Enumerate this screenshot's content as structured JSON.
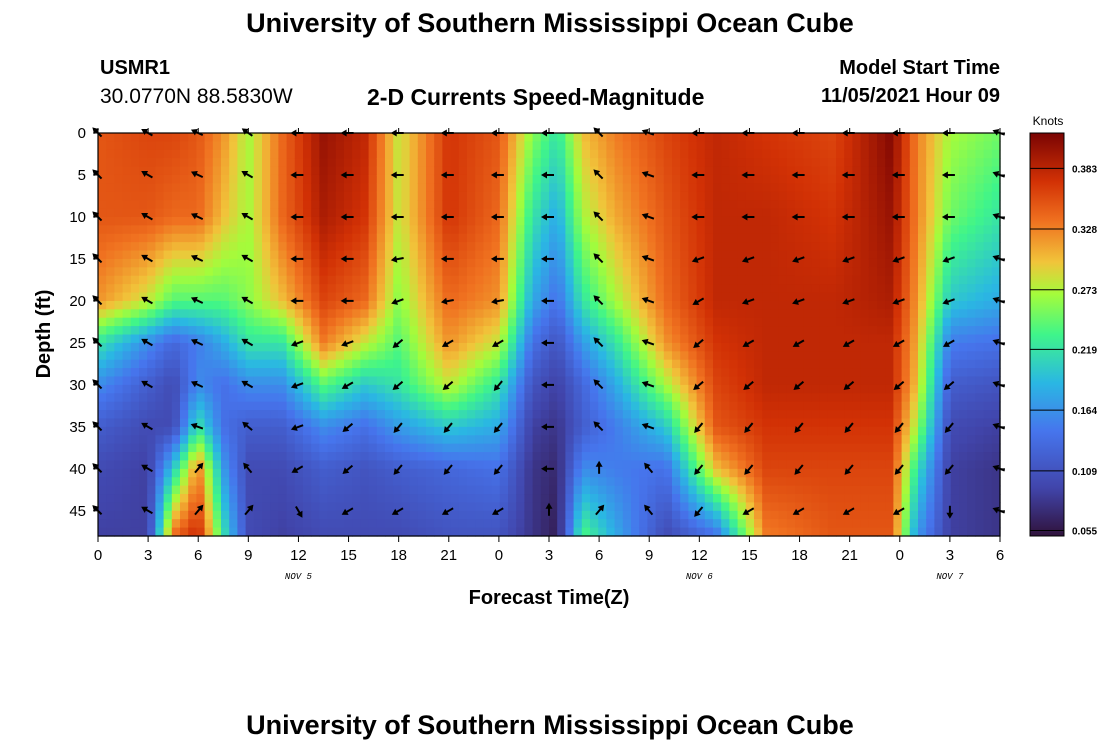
{
  "header": {
    "title": "University of Southern Mississippi Ocean Cube",
    "station_name": "USMR1",
    "station_coords": "30.0770N  88.5830W",
    "subtitle": "2-D Currents Speed-Magnitude",
    "start_label": "Model Start Time",
    "start_value": "11/05/2021 Hour 09"
  },
  "footer": {
    "title": "University of Southern Mississippi Ocean Cube"
  },
  "chart_data": {
    "type": "heatmap",
    "title": "2-D Currents Speed-Magnitude",
    "xlabel": "Forecast Time(Z)",
    "ylabel": "Depth (ft)",
    "x_hours_from_start": [
      0,
      3,
      6,
      9,
      12,
      15,
      18,
      21,
      24,
      27,
      30,
      33,
      36,
      39,
      42,
      45,
      48,
      51,
      54
    ],
    "x_tick_labels": [
      "0",
      "3",
      "6",
      "9",
      "12",
      "15",
      "18",
      "21",
      "0",
      "3",
      "6",
      "9",
      "12",
      "15",
      "18",
      "21",
      "0",
      "3",
      "6"
    ],
    "date_labels": [
      {
        "label": "NOV 5",
        "tick_index": 4
      },
      {
        "label": "NOV 6",
        "tick_index": 12
      },
      {
        "label": "NOV 7",
        "tick_index": 17
      }
    ],
    "y_depth_ft": [
      0,
      5,
      10,
      15,
      20,
      25,
      30,
      35,
      40,
      45
    ],
    "y_tick_labels": [
      "0",
      "5",
      "10",
      "15",
      "20",
      "25",
      "30",
      "35",
      "40",
      "45"
    ],
    "ylim": [
      0,
      48
    ],
    "xlim": [
      0,
      54
    ],
    "colorbar": {
      "title": "Knots",
      "tick_labels": [
        "0.383",
        "0.328",
        "0.273",
        "0.219",
        "0.164",
        "0.109",
        "0.055"
      ],
      "tick_values": [
        0.383,
        0.328,
        0.273,
        0.219,
        0.164,
        0.109,
        0.055
      ],
      "range": [
        0.05,
        0.415
      ]
    },
    "colors": {
      "darkest": "#30123b",
      "low": "#4145ab",
      "mid_low": "#2ab7e3",
      "mid": "#3ff58a",
      "mid_high": "#f1c43a",
      "high": "#f07220",
      "highest": "#7a0403"
    },
    "speed_columns": [
      {
        "hour": 0,
        "depths": [
          0,
          10,
          20,
          25,
          30,
          35,
          40,
          48
        ],
        "speeds": [
          0.35,
          0.35,
          0.32,
          0.22,
          0.16,
          0.12,
          0.1,
          0.09
        ]
      },
      {
        "hour": 3,
        "depths": [
          0,
          10,
          20,
          25,
          30,
          35,
          40,
          48
        ],
        "speeds": [
          0.36,
          0.35,
          0.28,
          0.16,
          0.12,
          0.1,
          0.09,
          0.09
        ]
      },
      {
        "hour": 4.5,
        "depths": [
          0,
          10,
          20,
          25,
          30,
          35,
          40,
          48
        ],
        "speeds": [
          0.36,
          0.34,
          0.24,
          0.13,
          0.1,
          0.1,
          0.2,
          0.34
        ]
      },
      {
        "hour": 6,
        "depths": [
          0,
          10,
          20,
          25,
          30,
          35,
          40,
          48
        ],
        "speeds": [
          0.35,
          0.34,
          0.24,
          0.15,
          0.16,
          0.22,
          0.33,
          0.38
        ]
      },
      {
        "hour": 7.5,
        "depths": [
          0,
          10,
          20,
          25,
          30,
          35,
          40,
          48
        ],
        "speeds": [
          0.32,
          0.3,
          0.24,
          0.18,
          0.14,
          0.14,
          0.17,
          0.22
        ]
      },
      {
        "hour": 9,
        "depths": [
          0,
          10,
          20,
          25,
          30,
          35,
          40,
          48
        ],
        "speeds": [
          0.27,
          0.27,
          0.26,
          0.22,
          0.16,
          0.12,
          0.1,
          0.1
        ]
      },
      {
        "hour": 11,
        "depths": [
          0,
          10,
          20,
          25,
          30,
          35,
          40,
          48
        ],
        "speeds": [
          0.34,
          0.34,
          0.3,
          0.22,
          0.16,
          0.12,
          0.1,
          0.09
        ]
      },
      {
        "hour": 13.5,
        "depths": [
          0,
          10,
          20,
          25,
          30,
          35,
          40,
          48
        ],
        "speeds": [
          0.4,
          0.39,
          0.36,
          0.33,
          0.24,
          0.16,
          0.12,
          0.1
        ]
      },
      {
        "hour": 16,
        "depths": [
          0,
          10,
          20,
          25,
          30,
          35,
          40,
          48
        ],
        "speeds": [
          0.38,
          0.37,
          0.34,
          0.28,
          0.2,
          0.14,
          0.11,
          0.1
        ]
      },
      {
        "hour": 18,
        "depths": [
          0,
          10,
          20,
          25,
          30,
          35,
          40,
          48
        ],
        "speeds": [
          0.28,
          0.28,
          0.26,
          0.24,
          0.22,
          0.17,
          0.12,
          0.1
        ]
      },
      {
        "hour": 21,
        "depths": [
          0,
          10,
          20,
          25,
          30,
          35,
          40,
          48
        ],
        "speeds": [
          0.37,
          0.37,
          0.34,
          0.32,
          0.28,
          0.2,
          0.13,
          0.11
        ]
      },
      {
        "hour": 24,
        "depths": [
          0,
          10,
          20,
          25,
          30,
          35,
          40,
          48
        ],
        "speeds": [
          0.35,
          0.34,
          0.32,
          0.28,
          0.22,
          0.18,
          0.14,
          0.11
        ]
      },
      {
        "hour": 26,
        "depths": [
          0,
          10,
          20,
          25,
          30,
          35,
          40,
          48
        ],
        "speeds": [
          0.26,
          0.22,
          0.18,
          0.14,
          0.11,
          0.09,
          0.08,
          0.08
        ]
      },
      {
        "hour": 27.5,
        "depths": [
          0,
          10,
          20,
          25,
          30,
          35,
          40,
          48
        ],
        "speeds": [
          0.22,
          0.18,
          0.14,
          0.11,
          0.09,
          0.08,
          0.07,
          0.06
        ]
      },
      {
        "hour": 29,
        "depths": [
          0,
          10,
          20,
          25,
          30,
          35,
          40,
          48
        ],
        "speeds": [
          0.3,
          0.27,
          0.22,
          0.17,
          0.13,
          0.12,
          0.16,
          0.24
        ]
      },
      {
        "hour": 31,
        "depths": [
          0,
          10,
          20,
          25,
          30,
          35,
          40,
          48
        ],
        "speeds": [
          0.33,
          0.31,
          0.27,
          0.22,
          0.18,
          0.15,
          0.15,
          0.18
        ]
      },
      {
        "hour": 34,
        "depths": [
          0,
          10,
          20,
          25,
          30,
          35,
          40,
          48
        ],
        "speeds": [
          0.36,
          0.35,
          0.34,
          0.32,
          0.27,
          0.2,
          0.14,
          0.1
        ]
      },
      {
        "hour": 37,
        "depths": [
          0,
          10,
          20,
          25,
          30,
          35,
          40,
          48
        ],
        "speeds": [
          0.38,
          0.38,
          0.38,
          0.37,
          0.36,
          0.35,
          0.3,
          0.14
        ]
      },
      {
        "hour": 40,
        "depths": [
          0,
          10,
          20,
          25,
          30,
          35,
          40,
          48
        ],
        "speeds": [
          0.37,
          0.38,
          0.38,
          0.38,
          0.38,
          0.37,
          0.36,
          0.33
        ]
      },
      {
        "hour": 44,
        "depths": [
          0,
          10,
          20,
          25,
          30,
          35,
          40,
          48
        ],
        "speeds": [
          0.36,
          0.37,
          0.38,
          0.38,
          0.38,
          0.37,
          0.36,
          0.35
        ]
      },
      {
        "hour": 47.5,
        "depths": [
          0,
          10,
          20,
          25,
          30,
          35,
          40,
          48
        ],
        "speeds": [
          0.41,
          0.4,
          0.39,
          0.38,
          0.38,
          0.37,
          0.36,
          0.35
        ]
      },
      {
        "hour": 49,
        "depths": [
          0,
          10,
          20,
          25,
          30,
          35,
          40,
          48
        ],
        "speeds": [
          0.33,
          0.33,
          0.32,
          0.31,
          0.3,
          0.27,
          0.22,
          0.17
        ]
      },
      {
        "hour": 51,
        "depths": [
          0,
          10,
          20,
          25,
          30,
          35,
          40,
          48
        ],
        "speeds": [
          0.27,
          0.25,
          0.2,
          0.15,
          0.12,
          0.1,
          0.09,
          0.09
        ]
      },
      {
        "hour": 54,
        "depths": [
          0,
          10,
          20,
          25,
          30,
          35,
          40,
          48
        ],
        "speeds": [
          0.25,
          0.22,
          0.18,
          0.14,
          0.11,
          0.09,
          0.08,
          0.08
        ]
      }
    ],
    "vector_directions_deg": [
      [
        225,
        210,
        205,
        215,
        180,
        180,
        180,
        180,
        180,
        180,
        225,
        200,
        180,
        180,
        180,
        180,
        180,
        180,
        200
      ],
      [
        225,
        210,
        205,
        210,
        180,
        180,
        180,
        180,
        180,
        180,
        225,
        200,
        180,
        180,
        180,
        180,
        180,
        180,
        200
      ],
      [
        225,
        210,
        205,
        210,
        180,
        180,
        180,
        180,
        180,
        180,
        225,
        200,
        180,
        180,
        180,
        180,
        180,
        180,
        200
      ],
      [
        225,
        210,
        205,
        210,
        180,
        180,
        170,
        180,
        180,
        180,
        225,
        200,
        160,
        160,
        160,
        160,
        160,
        160,
        200
      ],
      [
        225,
        210,
        205,
        210,
        180,
        180,
        160,
        170,
        170,
        180,
        225,
        200,
        150,
        160,
        160,
        160,
        160,
        160,
        200
      ],
      [
        225,
        210,
        205,
        210,
        160,
        160,
        140,
        150,
        150,
        180,
        225,
        200,
        140,
        150,
        150,
        150,
        150,
        150,
        200
      ],
      [
        225,
        210,
        205,
        210,
        160,
        150,
        140,
        140,
        130,
        180,
        225,
        200,
        140,
        140,
        140,
        140,
        140,
        140,
        200
      ],
      [
        225,
        210,
        200,
        220,
        160,
        140,
        130,
        130,
        130,
        180,
        225,
        200,
        130,
        130,
        130,
        130,
        130,
        130,
        200
      ],
      [
        225,
        210,
        310,
        230,
        150,
        140,
        130,
        130,
        130,
        180,
        270,
        230,
        130,
        130,
        130,
        130,
        130,
        130,
        200
      ],
      [
        225,
        210,
        310,
        310,
        60,
        150,
        150,
        150,
        150,
        270,
        310,
        230,
        130,
        150,
        150,
        150,
        150,
        90,
        200
      ]
    ]
  }
}
